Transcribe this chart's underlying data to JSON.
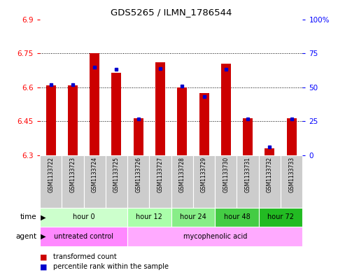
{
  "title": "GDS5265 / ILMN_1786544",
  "samples": [
    "GSM1133722",
    "GSM1133723",
    "GSM1133724",
    "GSM1133725",
    "GSM1133726",
    "GSM1133727",
    "GSM1133728",
    "GSM1133729",
    "GSM1133730",
    "GSM1133731",
    "GSM1133732",
    "GSM1133733"
  ],
  "transformed_count": [
    6.61,
    6.61,
    6.75,
    6.665,
    6.465,
    6.71,
    6.6,
    6.575,
    6.705,
    6.465,
    6.33,
    6.465
  ],
  "percentile_rank": [
    52,
    52,
    65,
    63,
    27,
    64,
    51,
    43,
    63,
    27,
    6,
    27
  ],
  "ylim_left": [
    6.3,
    6.9
  ],
  "ylim_right": [
    0,
    100
  ],
  "yticks_left": [
    6.3,
    6.45,
    6.6,
    6.75,
    6.9
  ],
  "yticks_right": [
    0,
    25,
    50,
    75,
    100
  ],
  "ytick_labels_left": [
    "6.3",
    "6.45",
    "6.6",
    "6.75",
    "6.9"
  ],
  "ytick_labels_right": [
    "0",
    "25",
    "50",
    "75",
    "100%"
  ],
  "bar_color": "#cc0000",
  "dot_color": "#0000cc",
  "base_value": 6.3,
  "time_groups": [
    {
      "label": "hour 0",
      "cols": [
        0,
        1,
        2,
        3
      ],
      "color": "#ccffcc"
    },
    {
      "label": "hour 12",
      "cols": [
        4,
        5
      ],
      "color": "#aaffaa"
    },
    {
      "label": "hour 24",
      "cols": [
        6,
        7
      ],
      "color": "#88ee88"
    },
    {
      "label": "hour 48",
      "cols": [
        8,
        9
      ],
      "color": "#44cc44"
    },
    {
      "label": "hour 72",
      "cols": [
        10,
        11
      ],
      "color": "#22bb22"
    }
  ],
  "agent_groups": [
    {
      "label": "untreated control",
      "cols": [
        0,
        1,
        2,
        3
      ],
      "color": "#ff88ff"
    },
    {
      "label": "mycophenolic acid",
      "cols": [
        4,
        5,
        6,
        7,
        8,
        9,
        10,
        11
      ],
      "color": "#ffaaff"
    }
  ],
  "sample_bg_color": "#cccccc",
  "plot_bg_color": "#ffffff",
  "outer_bg_color": "#ffffff"
}
